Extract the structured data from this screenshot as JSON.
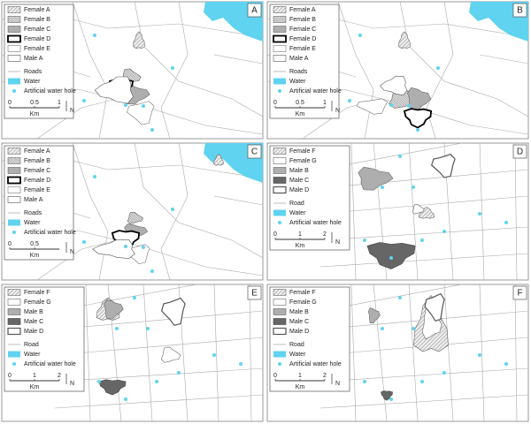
{
  "panels": [
    {
      "label": "A",
      "legend": [
        "Female A",
        "Female B",
        "Female C",
        "Female D",
        "Female E",
        "Male A"
      ],
      "roads": "Roads",
      "water": "Water",
      "water_hole": "Artificial water hole",
      "scale": [
        "0",
        "0.5",
        "1"
      ],
      "unit": "Km",
      "north": "N"
    },
    {
      "label": "B",
      "legend": [
        "Female A",
        "Female B",
        "Female C",
        "Female D",
        "Female E",
        "Male A"
      ],
      "roads": "Roads",
      "water": "Water",
      "water_hole": "Artificial water hole",
      "scale": [
        "0",
        "0.5",
        "1"
      ],
      "unit": "Km",
      "north": "N"
    },
    {
      "label": "C",
      "legend": [
        "Female A",
        "Female B",
        "Female C",
        "Female D",
        "Female E",
        "Male A"
      ],
      "roads": "Roads",
      "water": "Water",
      "water_hole": "Artificial water hole",
      "scale": [
        "0",
        "0.5"
      ],
      "unit": "Km",
      "north": "N"
    },
    {
      "label": "D",
      "legend": [
        "Female F",
        "Female G",
        "Male B",
        "Male C",
        "Male D"
      ],
      "roads": "Road",
      "water": "Water",
      "water_hole": "Artificial water hole",
      "scale": [
        "0",
        "1",
        "2"
      ],
      "unit": "Km",
      "north": "N"
    },
    {
      "label": "E",
      "legend": [
        "Female F",
        "Female G",
        "Male B",
        "Male C",
        "Male D"
      ],
      "roads": "Road",
      "water": "Water",
      "water_hole": "Artificial water hole",
      "scale": [
        "0",
        "1",
        "2"
      ],
      "unit": "Km",
      "north": "N"
    },
    {
      "label": "F",
      "legend": [
        "Female F",
        "Female G",
        "Male B",
        "Male C",
        "Male D"
      ],
      "roads": "Road",
      "water": "Water",
      "water_hole": "Artificial water hole",
      "scale": [
        "0",
        "1",
        "2"
      ],
      "unit": "Km",
      "north": "N"
    }
  ]
}
